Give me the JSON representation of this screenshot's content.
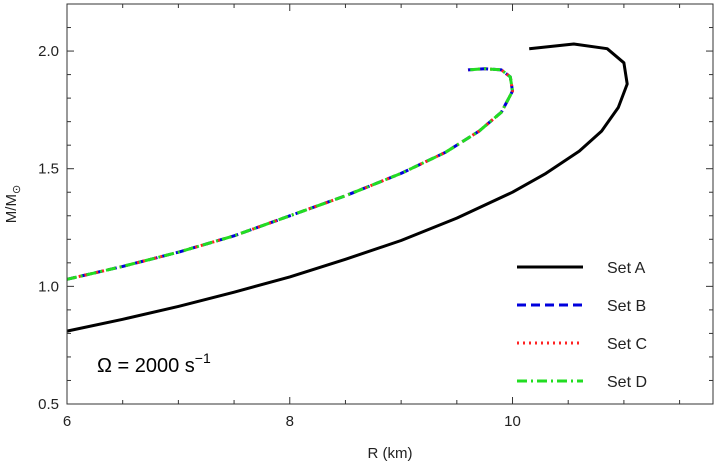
{
  "chart_data": {
    "type": "line",
    "xlabel": "R (km)",
    "ylabel": "M/M",
    "ylabel_symbol": "⊙",
    "xlim": [
      6,
      11.8
    ],
    "ylim": [
      0.5,
      2.2
    ],
    "xticks": [
      6,
      8,
      10
    ],
    "xtick_labels": [
      "6",
      "8",
      "10"
    ],
    "yticks": [
      0.5,
      1.0,
      1.5,
      2.0
    ],
    "ytick_labels": [
      "0.5",
      "1.0",
      "1.5",
      "2.0"
    ],
    "grid": false,
    "legend_position": "bottom-right",
    "annotation": {
      "prefix": "Ω = 2000 s",
      "superscript": "−1"
    },
    "series": [
      {
        "name": "Set A",
        "color": "#000000",
        "style": "solid",
        "points": [
          [
            6.0,
            0.81
          ],
          [
            6.5,
            0.86
          ],
          [
            7.0,
            0.915
          ],
          [
            7.5,
            0.975
          ],
          [
            8.0,
            1.04
          ],
          [
            8.5,
            1.115
          ],
          [
            9.0,
            1.195
          ],
          [
            9.5,
            1.29
          ],
          [
            10.0,
            1.4
          ],
          [
            10.3,
            1.48
          ],
          [
            10.6,
            1.575
          ],
          [
            10.8,
            1.66
          ],
          [
            10.95,
            1.76
          ],
          [
            11.03,
            1.86
          ],
          [
            11.0,
            1.95
          ],
          [
            10.85,
            2.01
          ],
          [
            10.55,
            2.03
          ],
          [
            10.15,
            2.01
          ]
        ]
      },
      {
        "name": "Set B",
        "color": "#0000dd",
        "style": "dashed",
        "points": [
          [
            6.0,
            1.03
          ],
          [
            6.5,
            1.085
          ],
          [
            7.0,
            1.145
          ],
          [
            7.5,
            1.215
          ],
          [
            8.0,
            1.3
          ],
          [
            8.5,
            1.385
          ],
          [
            9.0,
            1.48
          ],
          [
            9.4,
            1.57
          ],
          [
            9.7,
            1.66
          ],
          [
            9.9,
            1.74
          ],
          [
            10.0,
            1.83
          ],
          [
            9.98,
            1.89
          ],
          [
            9.9,
            1.92
          ],
          [
            9.75,
            1.925
          ],
          [
            9.6,
            1.92
          ]
        ]
      },
      {
        "name": "Set C",
        "color": "#ff2222",
        "style": "dotted",
        "points": [
          [
            6.0,
            1.03
          ],
          [
            6.5,
            1.085
          ],
          [
            7.0,
            1.145
          ],
          [
            7.5,
            1.215
          ],
          [
            8.0,
            1.3
          ],
          [
            8.5,
            1.385
          ],
          [
            9.0,
            1.48
          ],
          [
            9.4,
            1.57
          ],
          [
            9.7,
            1.66
          ],
          [
            9.9,
            1.74
          ],
          [
            10.0,
            1.83
          ],
          [
            9.98,
            1.89
          ],
          [
            9.9,
            1.92
          ],
          [
            9.75,
            1.925
          ],
          [
            9.6,
            1.92
          ]
        ]
      },
      {
        "name": "Set D",
        "color": "#22dd22",
        "style": "dashdot",
        "points": [
          [
            6.0,
            1.03
          ],
          [
            6.5,
            1.085
          ],
          [
            7.0,
            1.145
          ],
          [
            7.5,
            1.215
          ],
          [
            8.0,
            1.3
          ],
          [
            8.5,
            1.385
          ],
          [
            9.0,
            1.48
          ],
          [
            9.4,
            1.57
          ],
          [
            9.7,
            1.66
          ],
          [
            9.9,
            1.74
          ],
          [
            10.0,
            1.83
          ],
          [
            9.98,
            1.89
          ],
          [
            9.9,
            1.92
          ],
          [
            9.75,
            1.925
          ],
          [
            9.6,
            1.92
          ]
        ]
      }
    ]
  }
}
